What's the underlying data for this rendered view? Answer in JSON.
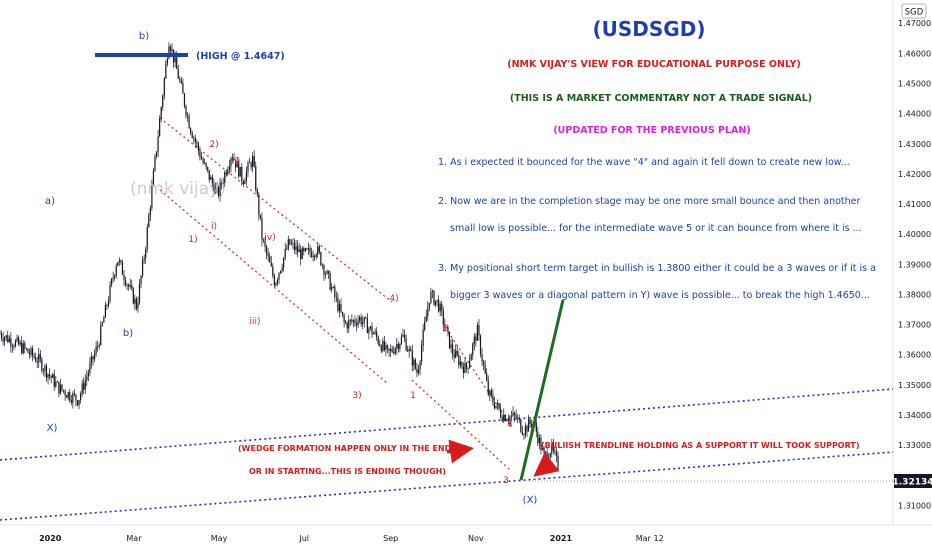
{
  "header": {
    "symbol_title": "(USDSGD)",
    "disclaimer": "(NMK VIJAY'S VIEW FOR EDUCATIONAL PURPOSE ONLY)",
    "commentary_note": "(THIS IS A MARKET COMMENTARY NOT A TRADE SIGNAL)",
    "update_note": "(UPDATED FOR THE PREVIOUS PLAN)",
    "currency_badge": "SGD"
  },
  "notes": [
    "1. As i expected it bounced for the wave \"4\" and again it fell down to create new low...",
    "2. Now we are in the completion stage may be one more small bounce and then another",
    "small low is possible... for the intermediate wave 5 or it can bounce from where it is ...",
    "3. My positional short term target in bullish is 1.3800 either it could be a 3 waves or if it is a",
    "bigger 3 waves or a diagonal pattern in Y) wave is possible... to break the high 1.4650..."
  ],
  "annotations": {
    "high_label": "(HIGH @ 1.4647)",
    "wedge_line1": "(WEDGE FORMATION HAPPEN ONLY IN THE ENDING",
    "wedge_line2": "OR IN STARTING...THIS IS ENDING THOUGH)",
    "trendline_note": "(BULIISH TRENDLINE HOLDING AS A SUPPORT IT WILL TOOK SUPPORT)",
    "watermark": "(nmk vijay)"
  },
  "wave_labels_blue": [
    "b)",
    "a)",
    "b)",
    "X)",
    "(X)"
  ],
  "wave_labels_red": [
    "2)",
    "ii)",
    "i)",
    "1)",
    "iv)",
    "iii)",
    "4)",
    "3)",
    "2",
    "1",
    "4",
    "3"
  ],
  "colors": {
    "candle": "#131722",
    "blue_text": "#1e3fae",
    "red_text": "#d91b1b",
    "green_text": "#1a5c1a",
    "magenta_text": "#e020e0",
    "trendline": "#2a2ad8",
    "channel": "#d93030",
    "arrow_green": "#1f6b1f",
    "price_tag_bg": "#131722"
  },
  "chart_data": {
    "type": "candlestick",
    "symbol": "USDSGD",
    "x_ticks": [
      "2020",
      "Mar",
      "May",
      "Jul",
      "Sep",
      "Nov",
      "2021",
      "Mar",
      "12"
    ],
    "y_ticks": [
      "1.47000",
      "1.46000",
      "1.45000",
      "1.44000",
      "1.43000",
      "1.42000",
      "1.41000",
      "1.40000",
      "1.39000",
      "1.38000",
      "1.37000",
      "1.36000",
      "1.35000",
      "1.34000",
      "1.33000",
      "1.32134",
      "1.31000"
    ],
    "ylim": [
      1.3035,
      1.4777
    ],
    "last_price": "1.32134",
    "high": 1.4647,
    "low": 1.3202,
    "series": [
      {
        "name": "close",
        "x": [
          "2019-11-26",
          "2019-12-10",
          "2019-12-24",
          "2020-01-07",
          "2020-01-21",
          "2020-02-04",
          "2020-02-18",
          "2020-03-03",
          "2020-03-09",
          "2020-03-19",
          "2020-03-26",
          "2020-04-02",
          "2020-04-10",
          "2020-04-20",
          "2020-04-30",
          "2020-05-10",
          "2020-05-18",
          "2020-05-25",
          "2020-06-01",
          "2020-06-10",
          "2020-06-20",
          "2020-06-30",
          "2020-07-10",
          "2020-07-20",
          "2020-07-30",
          "2020-08-10",
          "2020-08-20",
          "2020-08-30",
          "2020-09-10",
          "2020-09-20",
          "2020-09-29",
          "2020-10-05",
          "2020-10-15",
          "2020-10-25",
          "2020-11-02",
          "2020-11-10",
          "2020-11-20",
          "2020-11-30",
          "2020-12-05",
          "2020-12-12",
          "2020-12-20",
          "2020-12-25",
          "2020-12-31"
        ],
        "values": [
          1.367,
          1.363,
          1.358,
          1.349,
          1.345,
          1.363,
          1.392,
          1.376,
          1.395,
          1.436,
          1.4647,
          1.452,
          1.436,
          1.423,
          1.413,
          1.427,
          1.418,
          1.425,
          1.398,
          1.384,
          1.397,
          1.393,
          1.395,
          1.383,
          1.37,
          1.372,
          1.367,
          1.36,
          1.366,
          1.354,
          1.38,
          1.377,
          1.361,
          1.355,
          1.368,
          1.347,
          1.34,
          1.339,
          1.335,
          1.338,
          1.326,
          1.329,
          1.322
        ]
      }
    ],
    "trendlines": [
      {
        "name": "wedge upper",
        "style": "red dotted",
        "from": [
          "2020-04-08",
          1.441
        ],
        "to": [
          "2020-12-08",
          1.339
        ]
      },
      {
        "name": "wedge lower",
        "style": "red dotted",
        "from": [
          "2020-04-08",
          1.423
        ],
        "to": [
          "2020-12-20",
          1.3202
        ]
      }
    ]
  }
}
